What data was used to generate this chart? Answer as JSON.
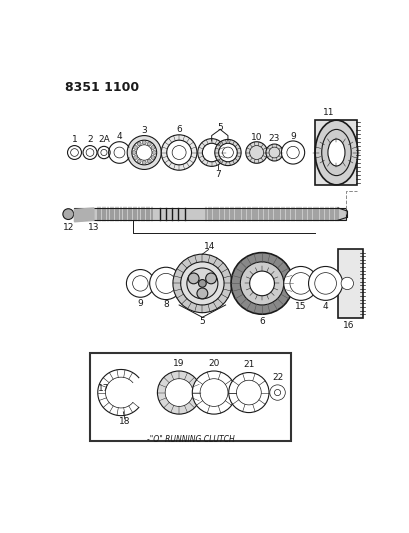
{
  "title": "8351 1100",
  "bg_color": "#ffffff",
  "line_color": "#1a1a1a",
  "title_fontsize": 9,
  "label_fontsize": 6.5,
  "inset_caption": "-\"O\" RUNNING CLUTCH"
}
